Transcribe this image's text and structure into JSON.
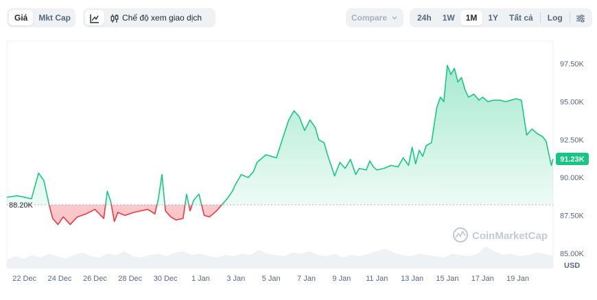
{
  "toolbar": {
    "tabs": [
      {
        "label": "Giá",
        "active": true
      },
      {
        "label": "Mkt Cap",
        "active": false
      }
    ],
    "chart_mode_label": "Chế độ xem giao dịch",
    "compare_label": "Compare",
    "ranges": [
      {
        "label": "24h",
        "active": false
      },
      {
        "label": "1W",
        "active": false
      },
      {
        "label": "1M",
        "active": true
      },
      {
        "label": "1Y",
        "active": false
      },
      {
        "label": "Tất cả",
        "active": false
      }
    ],
    "log_label": "Log"
  },
  "watermark": "CoinMarketCap",
  "colors": {
    "up": "#16c784",
    "down": "#ea3943",
    "price_tag": "#16c784",
    "baseline": "#a6b0c3"
  },
  "chart_data": {
    "type": "area",
    "baseline": 88200,
    "baseline_label": "88.20K",
    "current_label": "91.23K",
    "currency_label": "USD",
    "ylim": [
      84000,
      99000
    ],
    "xlim": [
      0,
      31
    ],
    "yticks": [
      {
        "value": 85000,
        "label": "85.00K"
      },
      {
        "value": 87500,
        "label": "87.50K"
      },
      {
        "value": 90000,
        "label": "90.00K"
      },
      {
        "value": 92500,
        "label": "92.50K"
      },
      {
        "value": 95000,
        "label": "95.00K"
      },
      {
        "value": 97500,
        "label": "97.50K"
      }
    ],
    "xticks": [
      {
        "value": 1,
        "label": "22 Dec"
      },
      {
        "value": 3,
        "label": "24 Dec"
      },
      {
        "value": 5,
        "label": "26 Dec"
      },
      {
        "value": 7,
        "label": "28 Dec"
      },
      {
        "value": 9,
        "label": "30 Dec"
      },
      {
        "value": 11,
        "label": "1 Jan"
      },
      {
        "value": 13,
        "label": "3 Jan"
      },
      {
        "value": 15,
        "label": "5 Jan"
      },
      {
        "value": 17,
        "label": "7 Jan"
      },
      {
        "value": 19,
        "label": "9 Jan"
      },
      {
        "value": 21,
        "label": "11 Jan"
      },
      {
        "value": 23,
        "label": "13 Jan"
      },
      {
        "value": 25,
        "label": "15 Jan"
      },
      {
        "value": 27,
        "label": "17 Jan"
      },
      {
        "value": 29,
        "label": "19 Jan"
      }
    ],
    "series": [
      {
        "x": [
          0,
          0.6,
          1.4,
          1.8,
          2.1,
          2.4,
          2.6,
          2.9,
          3.2,
          3.6,
          4.0,
          4.5,
          5.0,
          5.5,
          5.7,
          5.9,
          6.1,
          6.3,
          6.7,
          7.2,
          7.6,
          8.0,
          8.4,
          8.6,
          8.8,
          9.0,
          9.3,
          9.6,
          10.0,
          10.2,
          10.4,
          10.6,
          10.9,
          11.2,
          11.5,
          11.9,
          12.2,
          12.5,
          12.8,
          13.0,
          13.3,
          13.7,
          14.0,
          14.2,
          14.5,
          14.7,
          15.0,
          15.3,
          15.6,
          16.0,
          16.3,
          16.6,
          16.9,
          17.2,
          17.5,
          17.7,
          18.0,
          18.2,
          18.4,
          18.6,
          18.9,
          19.2,
          19.5,
          19.8,
          20.0,
          20.4,
          20.6,
          20.8,
          21.0,
          21.4,
          21.8,
          22.2,
          22.5,
          22.8,
          23.0,
          23.2,
          23.4,
          23.6,
          23.8,
          24.1,
          24.4,
          24.6,
          24.8,
          25.0,
          25.2,
          25.4,
          25.6,
          25.8,
          26.0,
          26.2,
          26.5,
          26.8,
          27.0,
          27.3,
          27.6,
          28.0,
          28.3,
          28.6,
          28.9,
          29.2,
          29.5,
          29.8,
          30.1,
          30.4,
          30.6,
          30.9,
          31.0
        ],
        "y": [
          88700,
          88800,
          88600,
          90300,
          89800,
          88200,
          87300,
          86900,
          87400,
          86900,
          87400,
          87600,
          87900,
          87300,
          89100,
          88400,
          87100,
          87700,
          87500,
          87700,
          87800,
          87900,
          87600,
          88600,
          90200,
          87800,
          87400,
          87200,
          87300,
          88900,
          87800,
          88500,
          88900,
          87500,
          87400,
          87800,
          88200,
          88600,
          89100,
          89600,
          90200,
          90000,
          90400,
          91000,
          91300,
          91500,
          91400,
          91300,
          92400,
          93800,
          94400,
          94000,
          93100,
          93800,
          93300,
          92500,
          92300,
          91500,
          90800,
          90100,
          91000,
          90600,
          91200,
          90200,
          90600,
          90500,
          91100,
          90700,
          90500,
          90600,
          90800,
          90700,
          91300,
          90800,
          92000,
          90900,
          91800,
          91400,
          92100,
          92300,
          94600,
          95300,
          95000,
          97400,
          96800,
          97200,
          96300,
          96600,
          95800,
          95300,
          95500,
          95100,
          95300,
          95000,
          95100,
          95100,
          95000,
          95100,
          95200,
          95100,
          92800,
          93200,
          92900,
          92700,
          92400,
          90800,
          91230
        ]
      }
    ],
    "volume": [
      0.35,
      0.5,
      0.4,
      0.55,
      0.45,
      0.6,
      0.5,
      0.4,
      0.55,
      0.65,
      0.5,
      0.45,
      0.6,
      0.55,
      0.7,
      0.5,
      0.45,
      0.55,
      0.6,
      0.5,
      0.65,
      0.7,
      0.55,
      0.6,
      0.5,
      0.45,
      0.55,
      0.5,
      0.6,
      0.55,
      0.75,
      0.6,
      0.55,
      0.5,
      0.65,
      0.6,
      0.7,
      0.55,
      0.5,
      0.6,
      0.45,
      0.55,
      0.5,
      0.6,
      0.7,
      0.8,
      0.65,
      0.55,
      0.5,
      0.6,
      0.55,
      0.5,
      0.45,
      0.6,
      0.55,
      0.5,
      0.6,
      0.9,
      0.7,
      0.55,
      0.6,
      0.5,
      0.55,
      0.65,
      0.6,
      0.5
    ]
  }
}
